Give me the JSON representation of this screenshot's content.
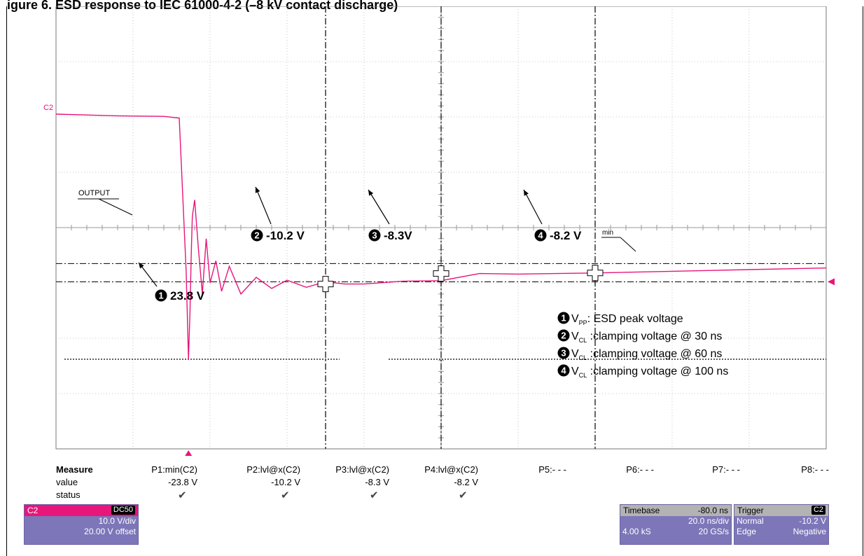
{
  "figure_title": "igure 6. ESD response to IEC 61000-4-2 (–8 kV contact discharge)",
  "channel_label": "C2",
  "output_label": "OUTPUT",
  "min_label": "min",
  "colors": {
    "trace": "#e8157a",
    "channel_header": "#e8157a",
    "panel": "#7d76b8"
  },
  "chart_data": {
    "type": "line",
    "title": "",
    "xlabel": "",
    "ylabel": "",
    "grid": true,
    "x_units": "ns",
    "xlim": [
      -80,
      120
    ],
    "ylim": [
      -40,
      40
    ],
    "x_div": 20,
    "y_div": 10,
    "series": [
      {
        "x": [
          -80,
          -64,
          -52,
          -48,
          -46.2,
          -45.6,
          -45.2,
          -44.9,
          -44.6,
          -44.0,
          -43.0,
          -42.0,
          -41.0,
          -40.0,
          -38.5,
          -37.0,
          -35.0,
          -32.0,
          -28.0,
          -24.0,
          -20.0,
          -15.0,
          -10.0,
          -5.0,
          0.0,
          10.0,
          20.0,
          30.0,
          40.0,
          50.0,
          60.0,
          80.0,
          100.0,
          120.0
        ],
        "y": [
          20.5,
          20.2,
          20.1,
          19.8,
          -8.0,
          -23.8,
          -15.0,
          -5.0,
          2.0,
          5.0,
          -4.0,
          -12.0,
          -2.0,
          -10.0,
          -6.0,
          -11.5,
          -7.0,
          -12.0,
          -9.0,
          -11.0,
          -9.5,
          -10.8,
          -9.8,
          -10.2,
          -10.2,
          -9.7,
          -9.6,
          -8.3,
          -8.4,
          -8.3,
          -8.2,
          -7.9,
          -7.6,
          -7.3
        ]
      }
    ],
    "reference_lines": {
      "dash_dot_upper": -6.5,
      "dash_dot_lower": -9.8,
      "dotted_min": -23.8
    },
    "cursors_x": [
      -10,
      20,
      60
    ],
    "annotations": [
      {
        "num": "1",
        "text": "23.8 V"
      },
      {
        "num": "2",
        "text": "-10.2 V"
      },
      {
        "num": "3",
        "text": "-8.3V"
      },
      {
        "num": "4",
        "text": "-8.2 V"
      }
    ],
    "legend": [
      {
        "num": "1",
        "sym": "V",
        "sub": "PP",
        "text": ": ESD peak voltage"
      },
      {
        "num": "2",
        "sym": "V",
        "sub": "CL",
        "text": " :clamping voltage @ 30 ns"
      },
      {
        "num": "3",
        "sym": "V",
        "sub": "CL",
        "text": " :clamping voltage @ 60 ns"
      },
      {
        "num": "4",
        "sym": "V",
        "sub": "CL",
        "text": " :clamping voltage @ 100 ns"
      }
    ],
    "legend_position": "bottom-right"
  },
  "measure": {
    "heading": "Measure",
    "row_value": "value",
    "row_status": "status",
    "params": [
      {
        "name": "P1:min(C2)",
        "value": "-23.8 V",
        "ok": true
      },
      {
        "name": "P2:lvl@x(C2)",
        "value": "-10.2 V",
        "ok": true
      },
      {
        "name": "P3:lvl@x(C2)",
        "value": "-8.3 V",
        "ok": true
      },
      {
        "name": "P4:lvl@x(C2)",
        "value": "-8.2 V",
        "ok": true
      },
      {
        "name": "P5:- - -",
        "value": "",
        "ok": false
      },
      {
        "name": "P6:- - -",
        "value": "",
        "ok": false
      },
      {
        "name": "P7:- - -",
        "value": "",
        "ok": false
      },
      {
        "name": "P8:- - -",
        "value": "",
        "ok": false
      }
    ],
    "check_glyph": "✔"
  },
  "channel_box": {
    "name": "C2",
    "coupling": "DC50",
    "vdiv": "10.0 V/div",
    "offset": "20.00 V offset"
  },
  "timebase_box": {
    "label": "Timebase",
    "delay": "-80.0 ns",
    "tdiv": "20.0 ns/div",
    "samples": "4.00 kS",
    "rate": "20 GS/s"
  },
  "trigger_box": {
    "label": "Trigger",
    "source": "C2",
    "mode": "Normal",
    "level": "-10.2 V",
    "type": "Edge",
    "slope": "Negative"
  }
}
